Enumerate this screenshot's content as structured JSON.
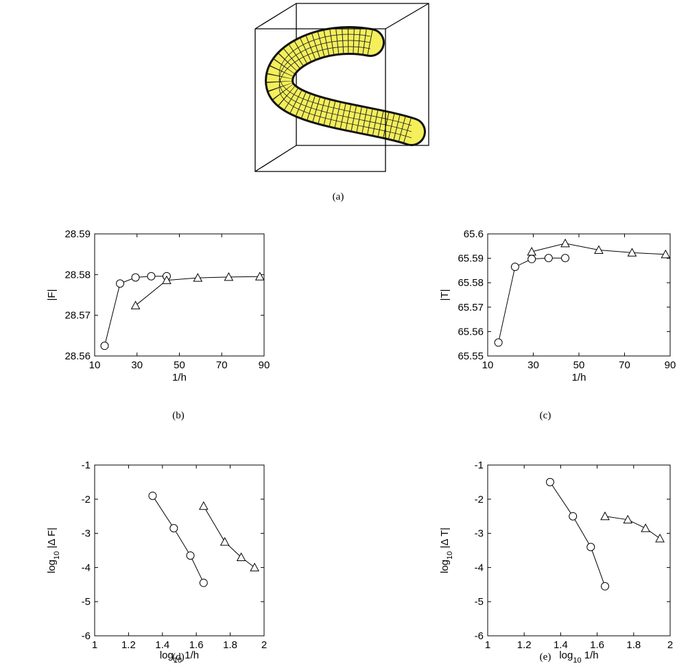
{
  "image_caption": "(a)",
  "chart_data": [
    {
      "type": "line",
      "caption": "(b)",
      "xlabel": "1/h",
      "ylabel_parts": [
        "|F|"
      ],
      "xlim": [
        10,
        90
      ],
      "xticks": [
        10,
        30,
        50,
        70,
        90
      ],
      "ylim": [
        28.56,
        28.59
      ],
      "yticks": [
        28.56,
        28.57,
        28.58,
        28.59
      ],
      "series": [
        {
          "marker": "circle",
          "color": "#000000",
          "x": [
            14.7,
            22,
            29.3,
            36.7,
            44
          ],
          "values": [
            28.5625,
            28.5778,
            28.5793,
            28.5796,
            28.5796
          ]
        },
        {
          "marker": "triangle",
          "color": "#000000",
          "x": [
            29.3,
            44,
            58.7,
            73.3,
            88
          ],
          "values": [
            28.5724,
            28.5786,
            28.5792,
            28.5794,
            28.5795
          ]
        }
      ]
    },
    {
      "type": "line",
      "caption": "(c)",
      "xlabel": "1/h",
      "ylabel_parts": [
        "|T|"
      ],
      "xlim": [
        10,
        90
      ],
      "xticks": [
        10,
        30,
        50,
        70,
        90
      ],
      "ylim": [
        65.55,
        65.6
      ],
      "yticks": [
        65.55,
        65.56,
        65.57,
        65.58,
        65.59,
        65.6
      ],
      "series": [
        {
          "marker": "circle",
          "color": "#000000",
          "x": [
            14.7,
            22,
            29.3,
            36.7,
            44
          ],
          "values": [
            65.5555,
            65.5865,
            65.5897,
            65.5901,
            65.5901
          ]
        },
        {
          "marker": "triangle",
          "color": "#000000",
          "x": [
            29.3,
            44,
            58.7,
            73.3,
            88
          ],
          "values": [
            65.5927,
            65.5961,
            65.5934,
            65.5923,
            65.5916
          ]
        }
      ]
    },
    {
      "type": "line",
      "caption": "(d)",
      "xlabel_parts": [
        "log",
        "10",
        " 1/h"
      ],
      "ylabel_parts": [
        "log",
        "10",
        " |Δ F|"
      ],
      "xlim": [
        1,
        2
      ],
      "xticks": [
        1,
        1.2,
        1.4,
        1.6,
        1.8,
        2
      ],
      "ylim": [
        -6,
        -1
      ],
      "yticks": [
        -6,
        -5,
        -4,
        -3,
        -2,
        -1
      ],
      "series": [
        {
          "marker": "circle",
          "color": "#000000",
          "x": [
            1.342,
            1.467,
            1.565,
            1.643
          ],
          "values": [
            -1.9,
            -2.85,
            -3.65,
            -4.45
          ]
        },
        {
          "marker": "triangle",
          "color": "#000000",
          "x": [
            1.643,
            1.768,
            1.865,
            1.944
          ],
          "values": [
            -2.2,
            -3.25,
            -3.7,
            -4.0
          ]
        }
      ]
    },
    {
      "type": "line",
      "caption": "(e)",
      "xlabel_parts": [
        "log",
        "10",
        " 1/h"
      ],
      "ylabel_parts": [
        "log",
        "10",
        " |Δ T|"
      ],
      "xlim": [
        1,
        2
      ],
      "xticks": [
        1,
        1.2,
        1.4,
        1.6,
        1.8,
        2
      ],
      "ylim": [
        -6,
        -1
      ],
      "yticks": [
        -6,
        -5,
        -4,
        -3,
        -2,
        -1
      ],
      "series": [
        {
          "marker": "circle",
          "color": "#000000",
          "x": [
            1.342,
            1.467,
            1.565,
            1.643
          ],
          "values": [
            -1.5,
            -2.5,
            -3.4,
            -4.55
          ]
        },
        {
          "marker": "triangle",
          "color": "#000000",
          "x": [
            1.643,
            1.768,
            1.865,
            1.944
          ],
          "values": [
            -2.5,
            -2.6,
            -2.85,
            -3.15
          ]
        }
      ]
    }
  ]
}
